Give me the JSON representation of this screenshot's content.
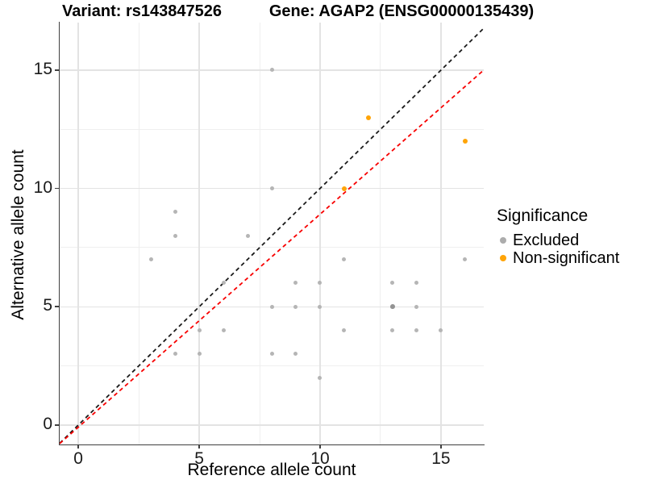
{
  "titles": {
    "left": "Variant: rs143847526",
    "right": "Gene: AGAP2 (ENSG00000135439)"
  },
  "axes": {
    "x_label": "Reference allele count",
    "y_label": "Alternative allele count"
  },
  "legend": {
    "title": "Significance",
    "items": [
      {
        "label": "Excluded",
        "color": "#acacac"
      },
      {
        "label": "Non-significant",
        "color": "#ffa408"
      }
    ]
  },
  "chart_data": {
    "type": "scatter",
    "title_left": "Variant: rs143847526",
    "title_right": "Gene: AGAP2 (ENSG00000135439)",
    "xlabel": "Reference allele count",
    "ylabel": "Alternative allele count",
    "xlim": [
      -0.77,
      16.77
    ],
    "ylim": [
      -0.82,
      17.01
    ],
    "x_ticks": [
      0,
      5,
      10,
      15
    ],
    "y_ticks": [
      0,
      5,
      10,
      15
    ],
    "x_minor": [
      2.5,
      7.5,
      12.5
    ],
    "y_minor": [
      2.5,
      7.5,
      12.5
    ],
    "grid": true,
    "legend_position": "right",
    "series": [
      {
        "name": "Excluded",
        "color": "#b5b5b5",
        "size": 5,
        "points": [
          [
            3,
            7
          ],
          [
            4,
            3
          ],
          [
            4,
            8
          ],
          [
            4,
            9
          ],
          [
            5,
            3
          ],
          [
            5,
            4
          ],
          [
            6,
            4
          ],
          [
            6,
            6
          ],
          [
            7,
            8
          ],
          [
            8,
            3
          ],
          [
            8,
            5
          ],
          [
            8,
            10
          ],
          [
            8,
            15
          ],
          [
            9,
            3
          ],
          [
            9,
            5
          ],
          [
            9,
            6
          ],
          [
            10,
            2
          ],
          [
            10,
            5
          ],
          [
            10,
            6
          ],
          [
            11,
            4
          ],
          [
            11,
            7
          ],
          [
            13,
            4
          ],
          [
            13,
            5
          ],
          [
            13,
            6
          ],
          [
            14,
            4
          ],
          [
            14,
            5
          ],
          [
            14,
            6
          ],
          [
            15,
            4
          ],
          [
            16,
            7
          ]
        ],
        "darker_points": [
          [
            13,
            5
          ]
        ],
        "darker_color": "#939393"
      },
      {
        "name": "Non-significant",
        "color": "#ffa408",
        "size": 6,
        "points": [
          [
            11,
            10
          ],
          [
            12,
            13
          ],
          [
            16,
            12
          ]
        ]
      }
    ],
    "lines": [
      {
        "name": "identity",
        "slope": 1,
        "intercept": 0,
        "color": "#1a1a1a",
        "dash": "5,4",
        "width": 1.8
      },
      {
        "name": "fit",
        "slope": 0.9,
        "intercept": -0.09,
        "color": "#f80000",
        "dash": "5,4",
        "width": 1.8
      }
    ]
  }
}
